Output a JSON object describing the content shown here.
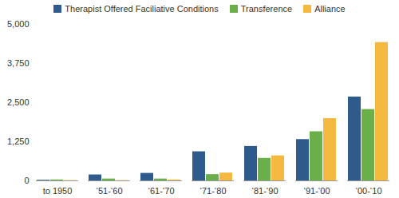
{
  "chart_data": {
    "type": "bar",
    "categories": [
      "to 1950",
      "‘51-‘60",
      "‘61-‘70",
      "‘71-‘80",
      "‘81-‘90",
      "‘91-‘00",
      "‘00-‘10"
    ],
    "series": [
      {
        "name": "Therapist Offered Faciliative Conditions",
        "color": "#2e5b8c",
        "values": [
          20,
          190,
          240,
          930,
          1100,
          1320,
          2680
        ]
      },
      {
        "name": "Transference",
        "color": "#6aaf4a",
        "values": [
          30,
          60,
          60,
          200,
          720,
          1570,
          2280
        ]
      },
      {
        "name": "Alliance",
        "color": "#f5b942",
        "values": [
          10,
          10,
          30,
          250,
          800,
          1990,
          4420
        ]
      }
    ],
    "ylim": [
      0,
      5000
    ],
    "yticks": [
      0,
      {
        "value": 1250,
        "label": "1,250"
      },
      {
        "value": 2500,
        "label": "2,500"
      },
      {
        "value": 3750,
        "label": "3,750"
      },
      {
        "value": 5000,
        "label": "5,000"
      }
    ],
    "grid": false,
    "legend": "top"
  }
}
